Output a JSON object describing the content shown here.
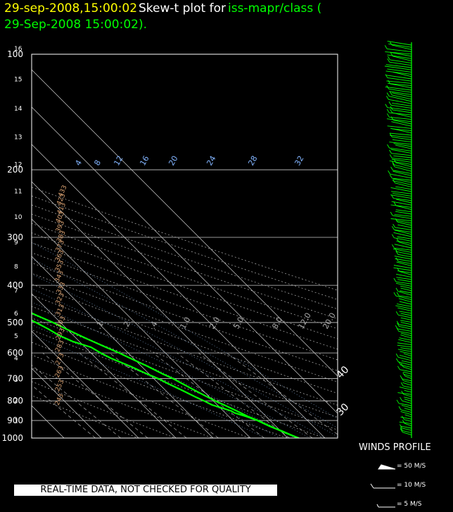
{
  "header": {
    "date": "29-sep-2008,15:00:02",
    "label": "Skew-t plot for",
    "source": "iss-mapr/class (",
    "line2": "29-Sep-2008 15:00:02).",
    "colors": {
      "date": "#ffff00",
      "label": "#ffffff",
      "source": "#00ff00"
    }
  },
  "notice": "REAL-TIME DATA, NOT CHECKED FOR QUALITY",
  "winds": {
    "title": "WINDS PROFILE",
    "key": [
      "= 50 M/S",
      "= 10 M/S",
      "= 5 M/S"
    ]
  },
  "chart_data": {
    "type": "line",
    "title": "Skew-t plot",
    "pressure_ticks": [
      100,
      200,
      300,
      400,
      500,
      600,
      700,
      800,
      900,
      1000
    ],
    "height_km_ticks": [
      1,
      2,
      3,
      4,
      5,
      6,
      7,
      8,
      9,
      10,
      11,
      12,
      13,
      14,
      15,
      16
    ],
    "temp_tick_labels": [
      {
        "t": -120,
        "label": "-120"
      },
      {
        "t": -110,
        "label": "-110"
      },
      {
        "t": -100,
        "label": "-100"
      },
      {
        "t": -90,
        "label": "-90"
      },
      {
        "t": -80,
        "label": "-80"
      },
      {
        "t": -70,
        "label": "-70"
      },
      {
        "t": -60,
        "label": "-60"
      },
      {
        "t": -50,
        "label": "-50"
      },
      {
        "t": -40,
        "label": "-40"
      },
      {
        "t": -30,
        "label": "-30"
      },
      {
        "t": -20,
        "label": "-20"
      },
      {
        "t": -10,
        "label": "-10"
      },
      {
        "t": 0,
        "label": "0"
      },
      {
        "t": 10,
        "label": "10"
      },
      {
        "t": 20,
        "label": "20"
      },
      {
        "t": 30,
        "label": "30"
      },
      {
        "t": 40,
        "label": "40"
      }
    ],
    "dry_adiabats_K": [
      243,
      253,
      263,
      273,
      283,
      293,
      303,
      313,
      323,
      333,
      343,
      353,
      363,
      373,
      383,
      393,
      403,
      413,
      423,
      433
    ],
    "moist_adiabat_labels": [
      "4",
      "8",
      "12",
      "16",
      "20",
      "24",
      "28",
      "32"
    ],
    "mixing_ratio_labels": [
      ".1",
      ".2",
      ".4",
      "1.0",
      "2.0",
      "5.0",
      "8.0",
      "12.0",
      "20.0"
    ],
    "series": [
      {
        "name": "temperature",
        "color": "#00ff00",
        "points": [
          [
            1000,
            13.0
          ],
          [
            970,
            10.8
          ],
          [
            940,
            9.0
          ],
          [
            920,
            7.8
          ],
          [
            900,
            6.8
          ],
          [
            880,
            5.2
          ],
          [
            850,
            3.6
          ],
          [
            820,
            1.8
          ],
          [
            800,
            0.5
          ],
          [
            780,
            -0.6
          ],
          [
            750,
            -2.2
          ],
          [
            720,
            -3.8
          ],
          [
            700,
            -4.8
          ],
          [
            680,
            -6.4
          ],
          [
            650,
            -8.4
          ],
          [
            620,
            -10.8
          ],
          [
            600,
            -12.4
          ],
          [
            580,
            -14.4
          ],
          [
            550,
            -17.4
          ],
          [
            520,
            -20.2
          ],
          [
            500,
            -22.0
          ],
          [
            480,
            -24.4
          ],
          [
            450,
            -27.8
          ],
          [
            420,
            -31.6
          ],
          [
            400,
            -34.4
          ],
          [
            380,
            -37.6
          ],
          [
            350,
            -42.0
          ],
          [
            320,
            -47.2
          ],
          [
            300,
            -50.6
          ],
          [
            280,
            -54.4
          ],
          [
            250,
            -59.8
          ],
          [
            230,
            -63.8
          ],
          [
            200,
            -69.6
          ],
          [
            180,
            -73.4
          ],
          [
            160,
            -77.6
          ],
          [
            150,
            -79.8
          ],
          [
            140,
            -80.8
          ],
          [
            130,
            -80.2
          ],
          [
            120,
            -80.4
          ],
          [
            110,
            -80.6
          ],
          [
            100,
            -80.4
          ]
        ]
      },
      {
        "name": "dewpoint",
        "color": "#00ff00",
        "points": [
          [
            1000,
            12.8
          ],
          [
            960,
            10.4
          ],
          [
            930,
            8.2
          ],
          [
            900,
            6.6
          ],
          [
            880,
            4.8
          ],
          [
            860,
            2.5
          ],
          [
            850,
            2.1
          ],
          [
            840,
            1.0
          ],
          [
            820,
            -1.4
          ],
          [
            800,
            -2.5
          ],
          [
            780,
            -3.8
          ],
          [
            750,
            -5.6
          ],
          [
            720,
            -7.6
          ],
          [
            700,
            -8.8
          ],
          [
            680,
            -10.6
          ],
          [
            650,
            -13.0
          ],
          [
            620,
            -16.0
          ],
          [
            600,
            -17.4
          ],
          [
            580,
            -18.4
          ],
          [
            560,
            -21.8
          ],
          [
            540,
            -23.8
          ],
          [
            520,
            -25.0
          ],
          [
            500,
            -26.6
          ],
          [
            480,
            -28.4
          ],
          [
            460,
            -31.2
          ],
          [
            440,
            -35.2
          ],
          [
            420,
            -36.2
          ],
          [
            400,
            -39.8
          ],
          [
            380,
            -41.4
          ],
          [
            350,
            -46.4
          ],
          [
            320,
            -49.8
          ],
          [
            300,
            -56.0
          ],
          [
            280,
            -59.4
          ],
          [
            260,
            -63.4
          ],
          [
            240,
            -68.4
          ],
          [
            220,
            -72.2
          ],
          [
            200,
            -76.8
          ],
          [
            190,
            -78.0
          ],
          [
            180,
            -78.0
          ],
          [
            170,
            -79.4
          ],
          [
            160,
            -82.2
          ],
          [
            150,
            -85.0
          ],
          [
            140,
            -88.0
          ],
          [
            130,
            -90.0
          ],
          [
            120,
            -89.6
          ],
          [
            110,
            -89.2
          ],
          [
            100,
            -89.0
          ]
        ]
      }
    ]
  }
}
